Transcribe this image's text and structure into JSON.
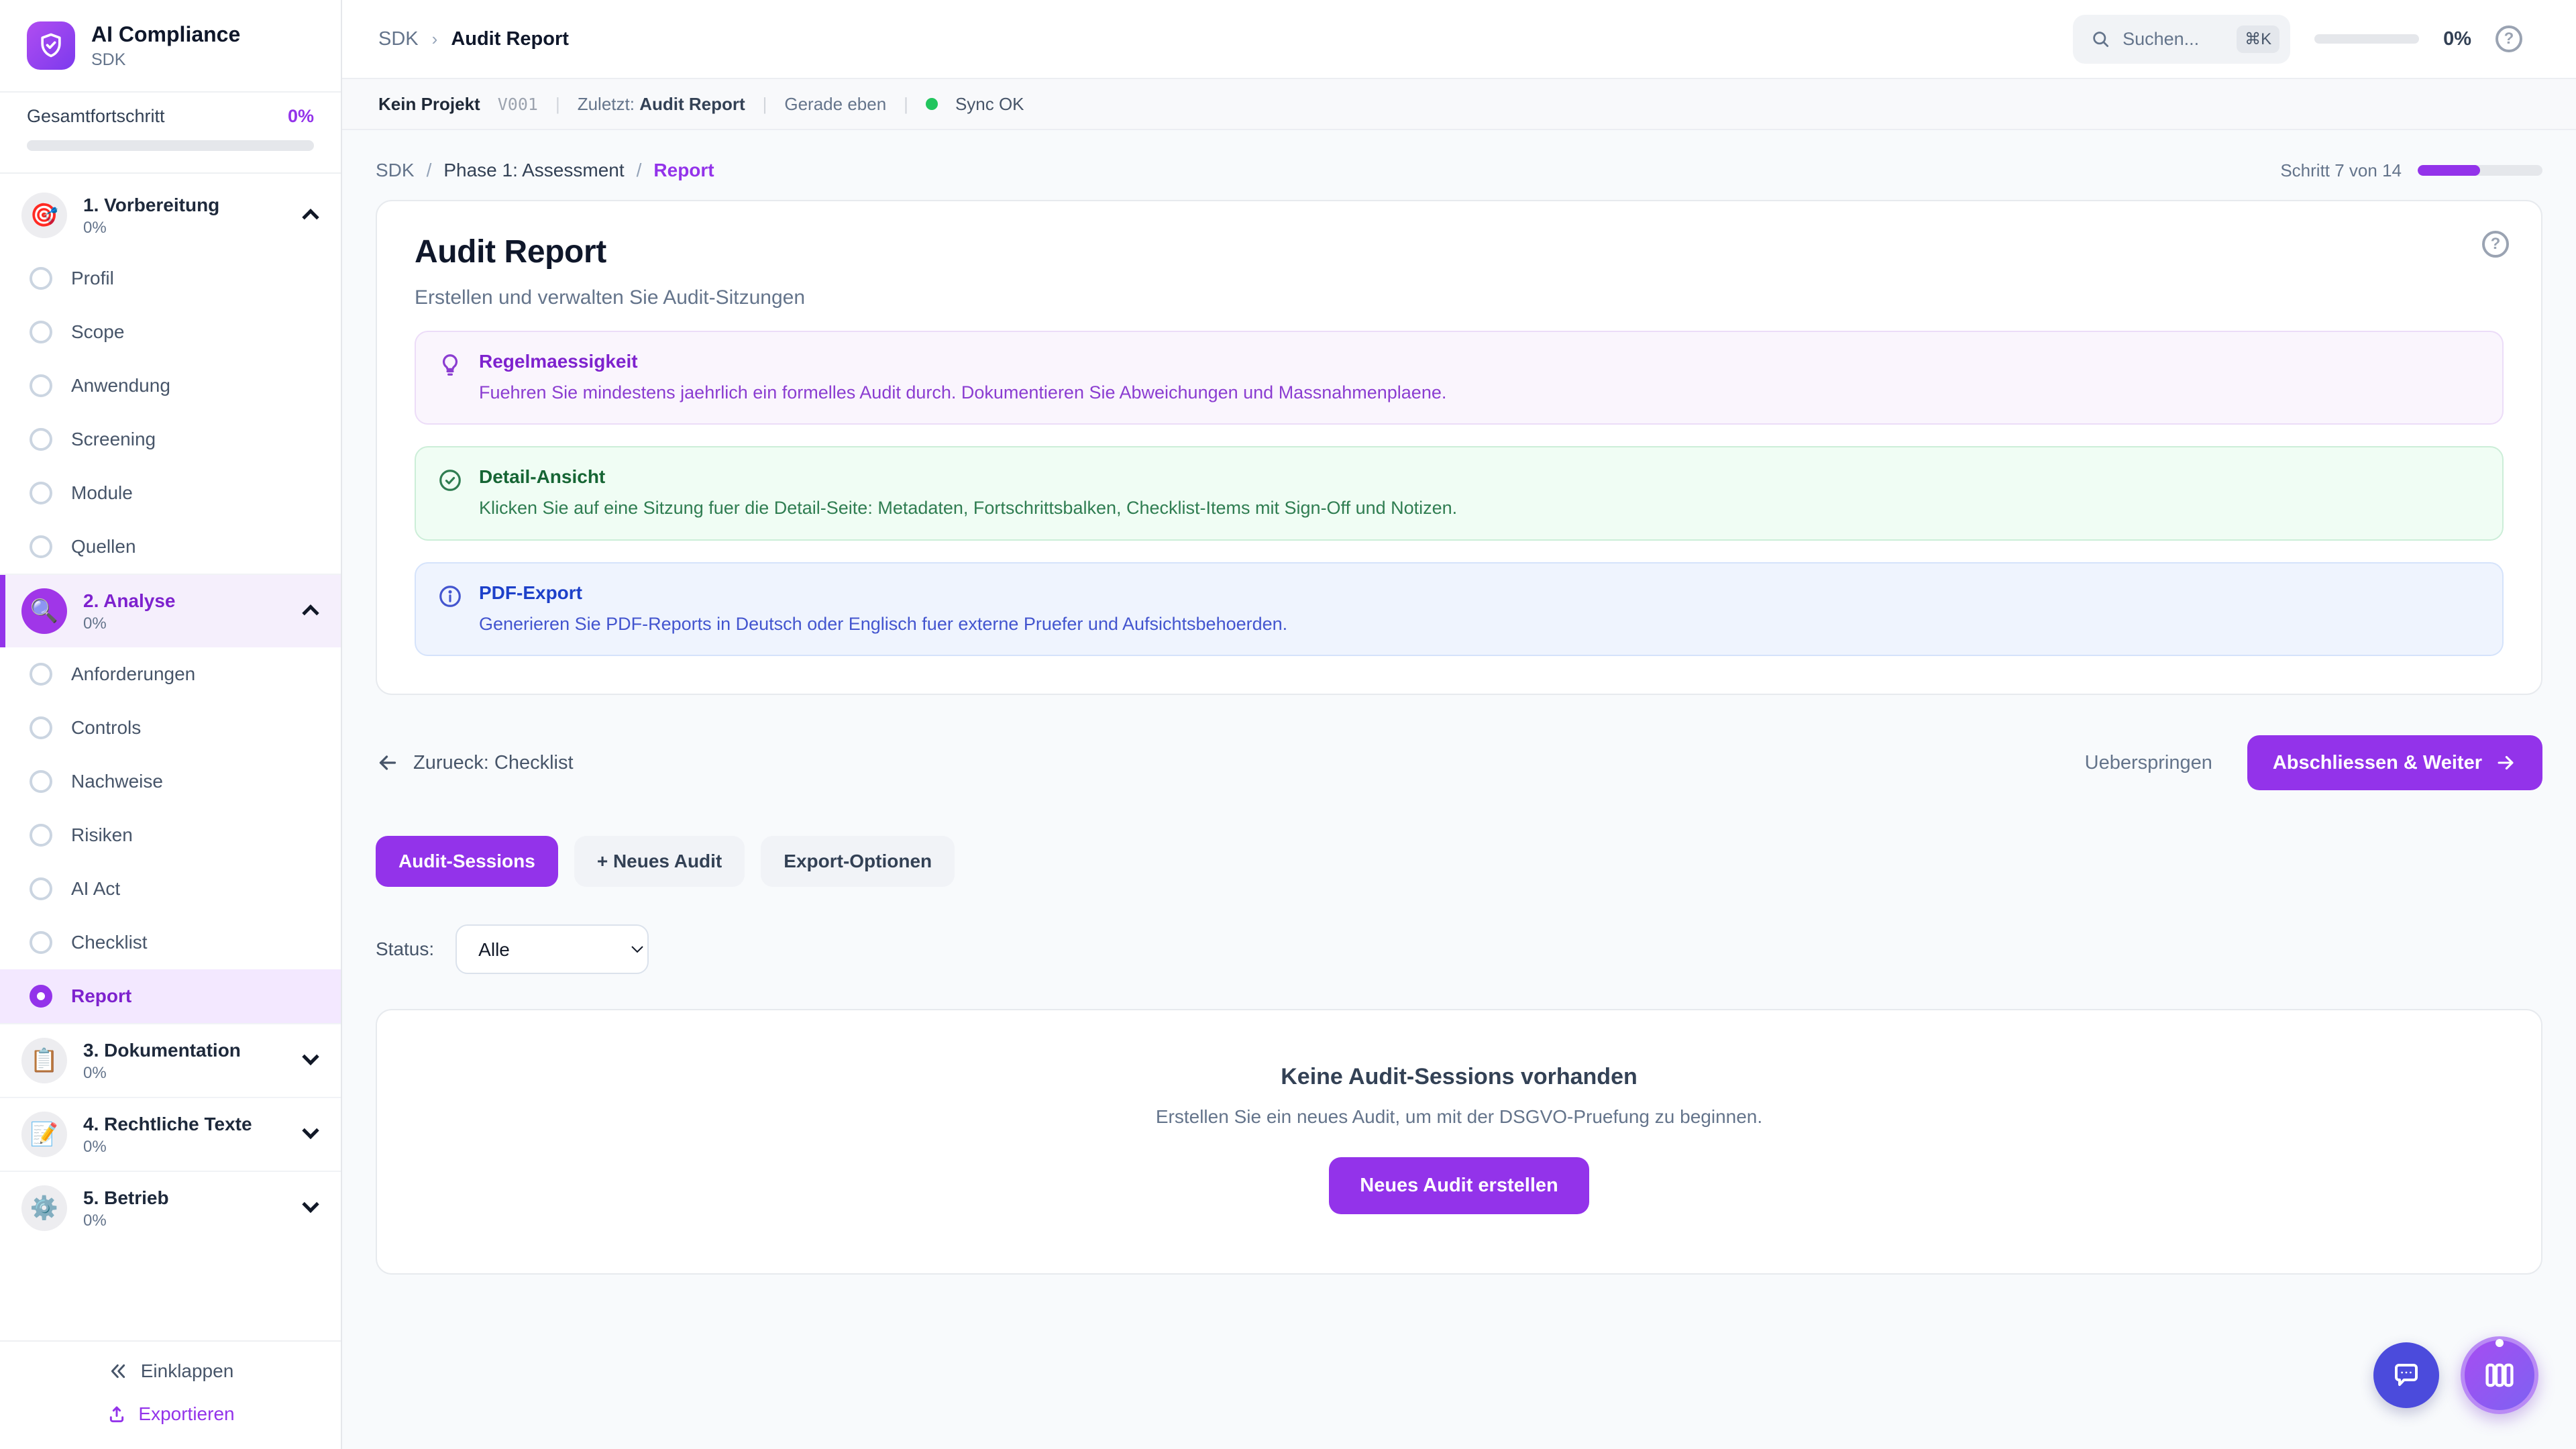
{
  "colors": {
    "accent": "#9333ea",
    "sync_ok": "#22c55e",
    "tip_purple": "#7e22ce",
    "success_green": "#166534",
    "info_blue": "#1d40c9"
  },
  "app": {
    "title": "AI Compliance",
    "subtitle": "SDK"
  },
  "sidebar": {
    "overall_label": "Gesamtfortschritt",
    "overall_value": "0%",
    "overall_percent": 0,
    "sections": [
      {
        "title": "1. Vorbereitung",
        "percent": "0%",
        "icon": "🎯",
        "items": [
          "Profil",
          "Scope",
          "Anwendung",
          "Screening",
          "Module",
          "Quellen"
        ]
      },
      {
        "title": "2. Analyse",
        "percent": "0%",
        "icon": "🔍",
        "items": [
          "Anforderungen",
          "Controls",
          "Nachweise",
          "Risiken",
          "AI Act",
          "Checklist",
          "Report"
        ]
      },
      {
        "title": "3. Dokumentation",
        "percent": "0%",
        "icon": "📋",
        "items": []
      },
      {
        "title": "4. Rechtliche Texte",
        "percent": "0%",
        "icon": "📝",
        "items": []
      },
      {
        "title": "5. Betrieb",
        "percent": "0%",
        "icon": "⚙️",
        "items": []
      }
    ],
    "active_item": "Report",
    "collapse_label": "Einklappen",
    "export_label": "Exportieren"
  },
  "topbar": {
    "crumb_root": "SDK",
    "crumb_sep": "›",
    "crumb_current": "Audit Report",
    "search_placeholder": "Suchen...",
    "search_kbd": "⌘K",
    "progress_value": "0%",
    "progress_percent": 0,
    "help_label": "?"
  },
  "statusbar": {
    "project": "Kein Projekt",
    "version": "V001",
    "sep": "|",
    "last_label": "Zuletzt:",
    "last_value": "Audit Report",
    "time": "Gerade eben",
    "sync": "Sync OK"
  },
  "page": {
    "crumb_root": "SDK",
    "crumb_sep": "/",
    "crumb_phase": "Phase 1: Assessment",
    "crumb_current": "Report",
    "step_label": "Schritt 7 von 14",
    "step_percent": 50
  },
  "card": {
    "title": "Audit Report",
    "subtitle": "Erstellen und verwalten Sie Audit-Sitzungen",
    "help_label": "?",
    "boxes": [
      {
        "kind": "tip",
        "title": "Regelmaessigkeit",
        "body": "Fuehren Sie mindestens jaehrlich ein formelles Audit durch. Dokumentieren Sie Abweichungen und Massnahmenplaene."
      },
      {
        "kind": "success",
        "title": "Detail-Ansicht",
        "body": "Klicken Sie auf eine Sitzung fuer die Detail-Seite: Metadaten, Fortschrittsbalken, Checklist-Items mit Sign-Off und Notizen."
      },
      {
        "kind": "info",
        "title": "PDF-Export",
        "body": "Generieren Sie PDF-Reports in Deutsch oder Englisch fuer externe Pruefer und Aufsichtsbehoerden."
      }
    ]
  },
  "wizard": {
    "back_label": "Zurueck: Checklist",
    "skip_label": "Ueberspringen",
    "next_label": "Abschliessen & Weiter"
  },
  "tabs": {
    "items": [
      "Audit-Sessions",
      "+ Neues Audit",
      "Export-Optionen"
    ],
    "active": "Audit-Sessions"
  },
  "filter": {
    "label": "Status:",
    "value": "Alle"
  },
  "empty": {
    "title": "Keine Audit-Sessions vorhanden",
    "text": "Erstellen Sie ein neues Audit, um mit der DSGVO-Pruefung zu beginnen.",
    "button": "Neues Audit erstellen"
  }
}
